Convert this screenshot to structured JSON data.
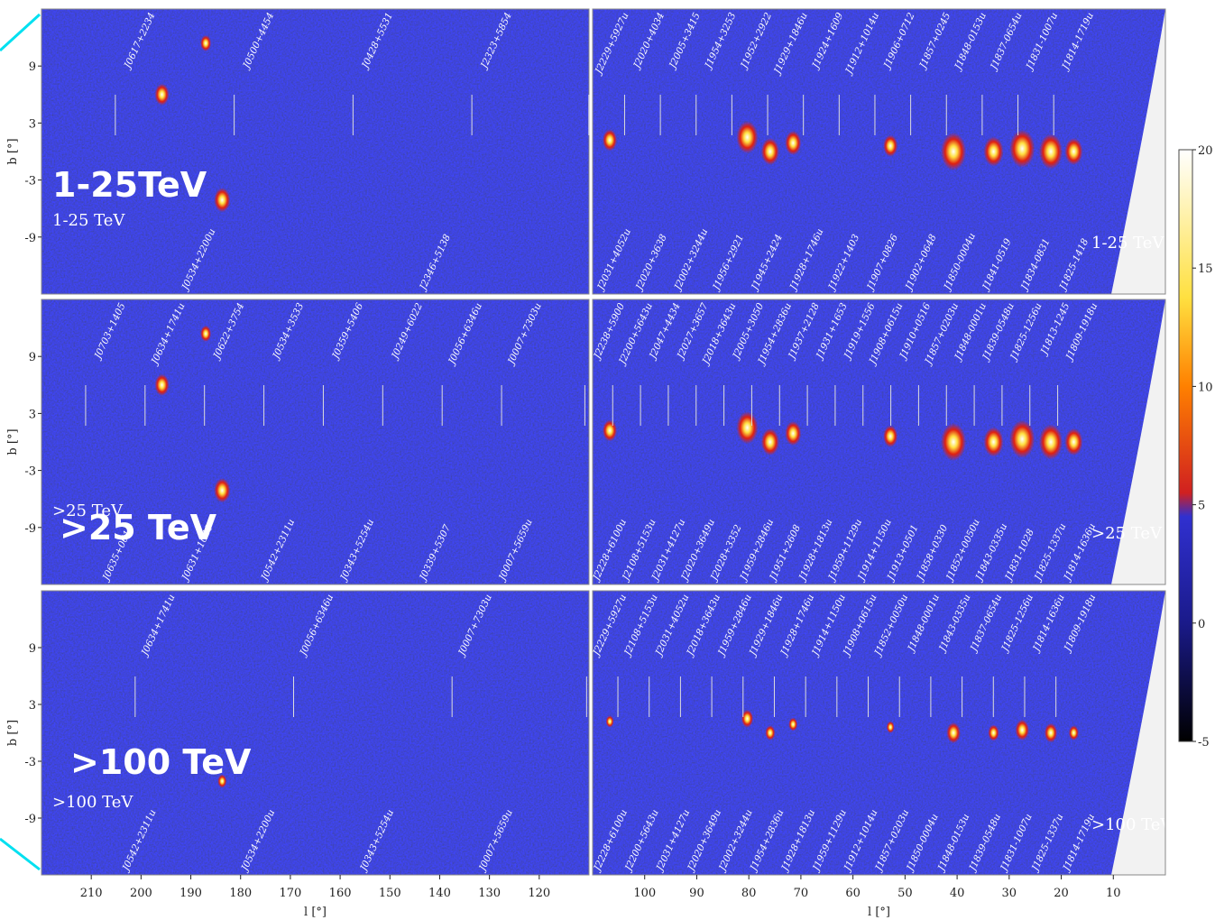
{
  "y_axis_label": "b [°]",
  "x_axis_label": "l [°]",
  "ylim": [
    -15,
    15
  ],
  "yticks": [
    9,
    3,
    -3,
    -9
  ],
  "left_xlim": [
    220,
    110
  ],
  "left_xticks": [
    210,
    200,
    190,
    180,
    170,
    160,
    150,
    140,
    130,
    120
  ],
  "right_xlim": [
    110,
    0
  ],
  "right_xticks": [
    100,
    90,
    80,
    70,
    60,
    50,
    40,
    30,
    20,
    10
  ],
  "colorbar": {
    "lim": [
      -5,
      20
    ],
    "ticks": [
      20,
      15,
      10,
      5,
      0,
      -5
    ]
  },
  "rows": [
    {
      "overlay": "1-25TeV",
      "left": {
        "label": "1-25 TeV",
        "top": [
          "J0617+2234",
          "J0500+4454",
          "J0428+5531",
          "J2323+5854"
        ],
        "bottom": [
          "J0534+2200u",
          "J2346+5138"
        ]
      },
      "right": {
        "label": "1-25 TeV",
        "top": [
          "J2229+5927u",
          "J2020+4034",
          "J2005+3415",
          "J1954+3253",
          "J1952+2922",
          "J1929+1846u",
          "J1924+1609",
          "J1912+1014u",
          "J1906+0712",
          "J1857+0245",
          "J1848-0153u",
          "J1837-0654u",
          "J1831-1007u",
          "J1814-1719u"
        ],
        "bottom": [
          "J2031+4052u",
          "J2020+3638",
          "J2002+3244u",
          "J1956+2921",
          "J1945+2424",
          "J1928+1746u",
          "J1922+1403",
          "J1907+0826",
          "J1902+0648",
          "J1850-0004u",
          "J1841-0519",
          "J1834-0831",
          "J1825-1418"
        ]
      }
    },
    {
      "overlay": ">25 TeV",
      "left": {
        "label": ">25 TeV",
        "top": [
          "J0703+1405",
          "J0634+1741u",
          "J0622+3754",
          "J0534+3533",
          "J0359+5406",
          "J0249+6022",
          "J0056+6346u",
          "J0007+7303u"
        ],
        "bottom": [
          "J0635+0619",
          "J0631+1040",
          "J0542+2311u",
          "J0343+5254u",
          "J0339+5307",
          "J0007+5659u"
        ]
      },
      "right": {
        "label": ">25 TeV",
        "top": [
          "J2238+5900",
          "J2200+5643u",
          "J2047+4434",
          "J2027+3657",
          "J2018+3643u",
          "J2005+3050",
          "J1954+2836u",
          "J1937+2128",
          "J1931+1653",
          "J1919+1556",
          "J1908+0615u",
          "J1910+0516",
          "J1857+0203u",
          "J1848-0001u",
          "J1839-0548u",
          "J1825-1256u",
          "J1813-1245",
          "J1809-1918u"
        ],
        "bottom": [
          "J2228+6100u",
          "J2108+5153u",
          "J2031+4127u",
          "J2020+3649u",
          "J2028+3352",
          "J1959+2846u",
          "J1951+2608",
          "J1928+1813u",
          "J1959+1129u",
          "J1914+1150u",
          "J1913+0501",
          "J1858+0330",
          "J1852+0050u",
          "J1843-0335u",
          "J1831-1028",
          "J1825-1337u",
          "J1814-1636u"
        ]
      }
    },
    {
      "overlay": ">100 TeV",
      "left": {
        "label": ">100 TeV",
        "top": [
          "J0634+1741u",
          "J0056+6346u",
          "J0007+7303u"
        ],
        "bottom": [
          "J0542+2311u",
          "J0534+2200u",
          "J0343+5254u",
          "J0007+5659u"
        ]
      },
      "right": {
        "label": ">100 TeV",
        "top": [
          "J2229+5927u",
          "J2108+5153u",
          "J2031+4052u",
          "J2018+3643u",
          "J1959+2846u",
          "J1929+1846u",
          "J1928+1746u",
          "J1914+1150u",
          "J1908+0615u",
          "J1852+0050u",
          "J1848-0001u",
          "J1843-0335u",
          "J1837-0654u",
          "J1825-1256u",
          "J1814-1636u",
          "J1809-1918u"
        ],
        "bottom": [
          "J2228+6100u",
          "J2200+5643u",
          "J2031+4127u",
          "J2020+3649u",
          "J2002+3244u",
          "J1954+2836u",
          "J1928+1813u",
          "J1959+1129u",
          "J1912+1014u",
          "J1857+0203u",
          "J1850-0004u",
          "J1848-0153u",
          "J1839-0548u",
          "J1831-1007u",
          "J1825-1337u",
          "J1814-1719u"
        ]
      }
    }
  ]
}
